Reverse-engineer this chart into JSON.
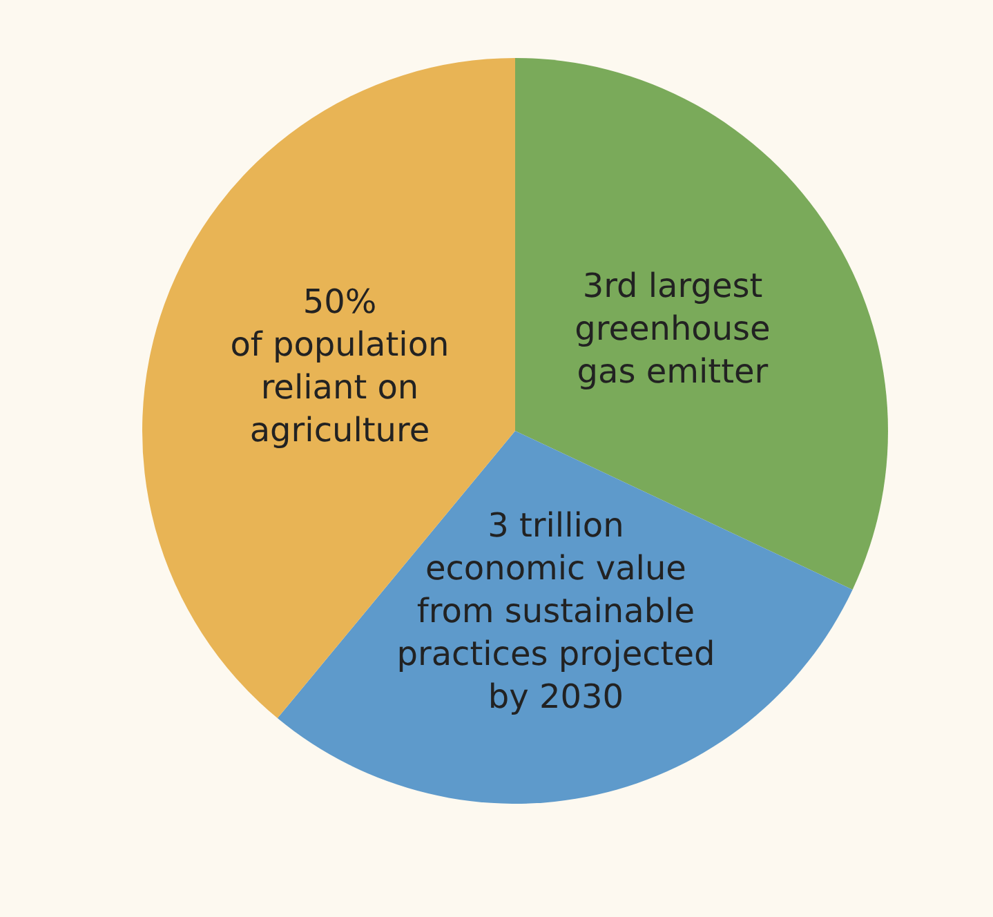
{
  "chart_data": {
    "type": "pie",
    "categories": [
      "3rd largest\ngreenhouse\ngas emitter",
      "3 trillion\neconomic value\nfrom sustainable\npractices projected\nby 2030",
      "50%\nof population\nreliant on\nagriculture"
    ],
    "values": [
      32,
      29,
      39
    ],
    "colors": [
      "#7aaa5a",
      "#5e9acb",
      "#e8b455"
    ]
  }
}
